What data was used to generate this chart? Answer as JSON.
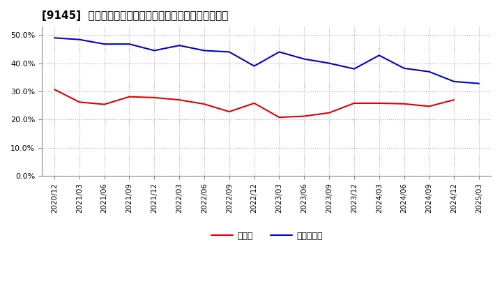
{
  "title": "[9145]  現須金、有利子負債の総資産に対する比率の推移",
  "x_labels": [
    "2020/12",
    "2021/03",
    "2021/06",
    "2021/09",
    "2021/12",
    "2022/03",
    "2022/06",
    "2022/09",
    "2022/12",
    "2023/03",
    "2023/06",
    "2023/09",
    "2023/12",
    "2024/03",
    "2024/06",
    "2024/09",
    "2024/12",
    "2025/03"
  ],
  "cash_ratio": [
    0.307,
    0.262,
    0.254,
    0.281,
    0.278,
    0.27,
    0.255,
    0.228,
    0.258,
    0.208,
    0.212,
    0.224,
    0.258,
    0.258,
    0.256,
    0.247,
    0.27,
    null
  ],
  "debt_ratio": [
    0.49,
    0.484,
    0.468,
    0.468,
    0.445,
    0.463,
    0.445,
    0.44,
    0.39,
    0.44,
    0.415,
    0.4,
    0.38,
    0.428,
    0.382,
    0.37,
    0.335,
    0.328
  ],
  "cash_color": "#dd0000",
  "debt_color": "#0000cc",
  "background_color": "#ffffff",
  "grid_color": "#aaaaaa",
  "ylim": [
    0.0,
    0.53
  ],
  "yticks": [
    0.0,
    0.1,
    0.2,
    0.3,
    0.4,
    0.5
  ],
  "legend_cash": "現須金",
  "legend_debt": "有利子負債",
  "ylabel_fontsize": 8,
  "xlabel_fontsize": 7.5,
  "title_fontsize": 11,
  "line_width": 1.5
}
